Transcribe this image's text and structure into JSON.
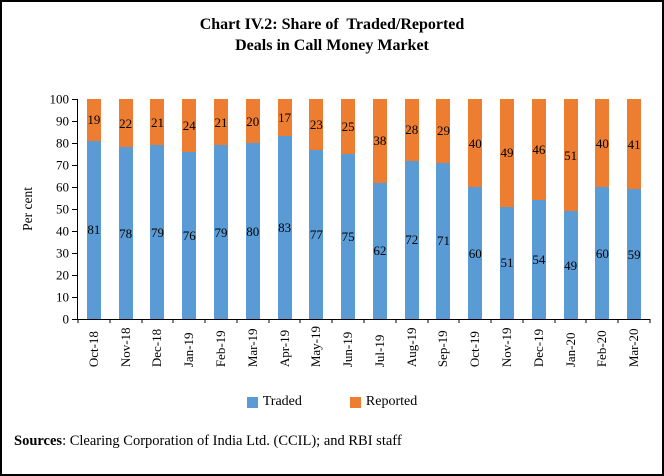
{
  "header": {
    "title_line1": "Chart IV.2: Share of  Traded/Reported",
    "title_line2": "Deals in Call Money Market"
  },
  "chart_data": {
    "type": "bar",
    "stacked": true,
    "title": "Chart IV.2: Share of Traded/Reported Deals in Call Money Market",
    "xlabel": "",
    "ylabel": "Per cent",
    "ylim": [
      0,
      100
    ],
    "yticks": [
      0,
      10,
      20,
      30,
      40,
      50,
      60,
      70,
      80,
      90,
      100
    ],
    "grid": false,
    "bar_labels": true,
    "legend_position": "bottom",
    "categories": [
      "Oct-18",
      "Nov-18",
      "Dec-18",
      "Jan-19",
      "Feb-19",
      "Mar-19",
      "Apr-19",
      "May-19",
      "Jun-19",
      "Jul-19",
      "Aug-19",
      "Sep-19",
      "Oct-19",
      "Nov-19",
      "Dec-19",
      "Jan-20",
      "Feb-20",
      "Mar-20"
    ],
    "series": [
      {
        "name": "Traded",
        "color": "#5B9BD5",
        "values": [
          81,
          78,
          79,
          76,
          79,
          80,
          83,
          77,
          75,
          62,
          72,
          71,
          60,
          51,
          54,
          49,
          60,
          59
        ]
      },
      {
        "name": "Reported",
        "color": "#ED7D31",
        "values": [
          19,
          22,
          21,
          24,
          21,
          20,
          17,
          23,
          25,
          38,
          28,
          29,
          40,
          49,
          46,
          51,
          40,
          41
        ]
      }
    ]
  },
  "footer": {
    "sources_label": "Sources",
    "sources_text": ": Clearing Corporation of India Ltd. (CCIL); and RBI staff"
  },
  "colors": {
    "traded": "#5B9BD5",
    "reported": "#ED7D31",
    "axis": "#000000",
    "text": "#000000"
  }
}
